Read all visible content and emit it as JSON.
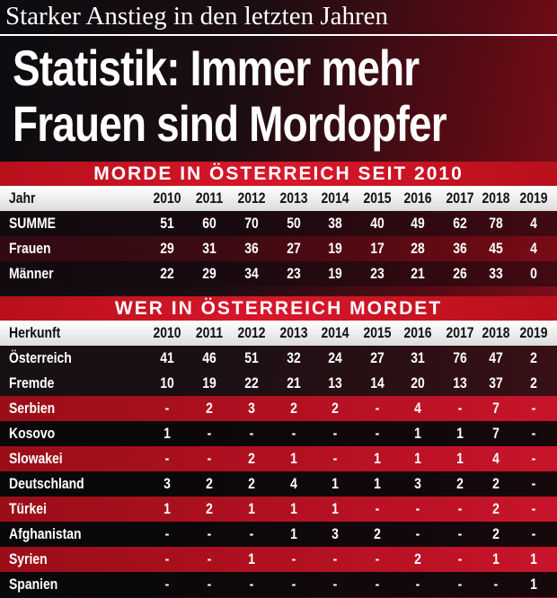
{
  "kicker": "Starker Anstieg in den letzten Jahren",
  "headline": [
    "Statistik: Immer mehr",
    "Frauen sind Mordopfer"
  ],
  "tables": [
    {
      "title": "MORDE IN ÖSTERREICH SEIT 2010",
      "header": [
        "Jahr",
        2010,
        2011,
        2012,
        2013,
        2014,
        2015,
        2016,
        2017,
        2018,
        2019
      ],
      "rows": [
        [
          "SUMME",
          51,
          60,
          70,
          50,
          38,
          40,
          49,
          62,
          78,
          4
        ],
        [
          "Frauen",
          29,
          31,
          36,
          27,
          19,
          17,
          28,
          36,
          45,
          4
        ],
        [
          "Männer",
          22,
          29,
          34,
          23,
          19,
          23,
          21,
          26,
          33,
          0
        ]
      ]
    },
    {
      "title": "WER IN ÖSTERREICH MORDET",
      "header": [
        "Herkunft",
        2010,
        2011,
        2012,
        2013,
        2014,
        2015,
        2016,
        2017,
        2018,
        2019
      ],
      "rows": [
        [
          "Österreich",
          41,
          46,
          51,
          32,
          24,
          27,
          31,
          76,
          47,
          2
        ],
        [
          "Fremde",
          10,
          19,
          22,
          21,
          13,
          14,
          20,
          13,
          37,
          2
        ],
        [
          "Serbien",
          "-",
          2,
          3,
          2,
          2,
          "-",
          4,
          "-",
          7,
          "-"
        ],
        [
          "Kosovo",
          1,
          "-",
          "-",
          "-",
          "-",
          "-",
          1,
          1,
          7,
          "-"
        ],
        [
          "Slowakei",
          "-",
          "-",
          2,
          1,
          "-",
          1,
          1,
          1,
          4,
          "-"
        ],
        [
          "Deutschland",
          3,
          2,
          2,
          4,
          1,
          1,
          3,
          2,
          2,
          "-"
        ],
        [
          "Türkei",
          1,
          2,
          1,
          1,
          1,
          "-",
          "-",
          "-",
          2,
          "-"
        ],
        [
          "Afghanistan",
          "-",
          "-",
          "-",
          1,
          3,
          2,
          "-",
          "-",
          2,
          "-"
        ],
        [
          "Syrien",
          "-",
          "-",
          1,
          "-",
          "-",
          "-",
          2,
          "-",
          1,
          1
        ],
        [
          "Spanien",
          "-",
          "-",
          "-",
          "-",
          "-",
          "-",
          "-",
          "-",
          "-",
          1
        ]
      ]
    }
  ]
}
